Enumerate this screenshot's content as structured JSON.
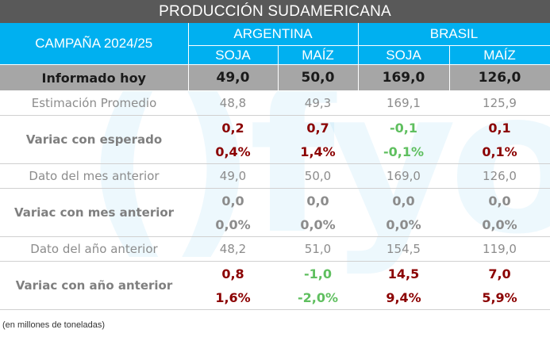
{
  "title": "PRODUCCIÓN SUDAMERICANA",
  "header": {
    "campaign": "CAMPAÑA 2024/25",
    "countries": [
      "ARGENTINA",
      "BRASIL"
    ],
    "crops": [
      "SOJA",
      "MAÍZ",
      "SOJA",
      "MAÍZ"
    ]
  },
  "rows": {
    "informado": {
      "label": "Informado hoy",
      "values": [
        "49,0",
        "50,0",
        "169,0",
        "126,0"
      ]
    },
    "estimacion": {
      "label": "Estimación Promedio",
      "values": [
        "48,8",
        "49,3",
        "169,1",
        "125,9"
      ]
    },
    "var_esperado": {
      "label": "Variac con esperado",
      "abs": [
        "0,2",
        "0,7",
        "-0,1",
        "0,1"
      ],
      "pct": [
        "0,4%",
        "1,4%",
        "-0,1%",
        "0,1%"
      ]
    },
    "mes_anterior": {
      "label": "Dato del mes anterior",
      "values": [
        "49,0",
        "50,0",
        "169,0",
        "126,0"
      ]
    },
    "var_mes": {
      "label": "Variac con mes anterior",
      "abs": [
        "0,0",
        "0,0",
        "0,0",
        "0,0"
      ],
      "pct": [
        "0,0%",
        "0,0%",
        "0,0%",
        "0,0%"
      ]
    },
    "anio_anterior": {
      "label": "Dato del año anterior",
      "values": [
        "48,2",
        "51,0",
        "154,5",
        "119,0"
      ]
    },
    "var_anio": {
      "label": "Variac con año anterior",
      "abs": [
        "0,8",
        "-1,0",
        "14,5",
        "7,0"
      ],
      "pct": [
        "1,6%",
        "-2,0%",
        "9,4%",
        "5,9%"
      ]
    }
  },
  "colors": {
    "header_bg": "#00b0f0",
    "title_bg": "#595959",
    "highlight_bg": "#a6a6a6",
    "positive": "#8b0000",
    "negative": "#5fbf5f"
  },
  "watermark": "()fyo",
  "footnote": "(en millones de toneladas)"
}
